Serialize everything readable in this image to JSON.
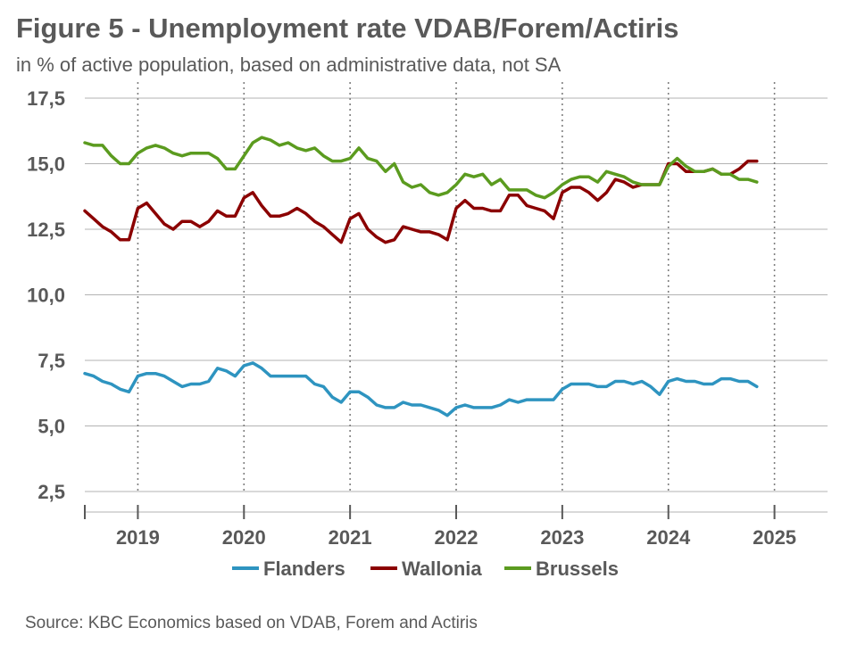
{
  "title": "Figure 5 - Unemployment rate VDAB/Forem/Actiris",
  "subtitle": "in % of active population, based on administrative data, not SA",
  "source": "Source: KBC Economics based on VDAB, Forem and Actiris",
  "chart_data": {
    "type": "line",
    "title": "Figure 5 - Unemployment rate VDAB/Forem/Actiris",
    "subtitle": "in % of active population, based on administrative data, not SA",
    "ylim": [
      2.5,
      17.5
    ],
    "yticks": [
      2.5,
      5.0,
      7.5,
      10.0,
      12.5,
      15.0,
      17.5
    ],
    "yticklabels": [
      "2,5",
      "5,0",
      "7,5",
      "10,0",
      "12,5",
      "15,0",
      "17,5"
    ],
    "xlim": [
      2018.5,
      2025.5
    ],
    "year_labels": [
      "2019",
      "2020",
      "2021",
      "2022",
      "2023",
      "2024",
      "2025"
    ],
    "grid": "horizontal solid, vertical dotted at year boundaries",
    "legend": "bottom",
    "x_start": 2018.5,
    "x_step_months": 1,
    "series": [
      {
        "name": "Flanders",
        "color": "#2E94C0",
        "values": [
          7.0,
          6.9,
          6.7,
          6.6,
          6.4,
          6.3,
          6.9,
          7.0,
          7.0,
          6.9,
          6.7,
          6.5,
          6.6,
          6.6,
          6.7,
          7.2,
          7.1,
          6.9,
          7.3,
          7.4,
          7.2,
          6.9,
          6.9,
          6.9,
          6.9,
          6.9,
          6.6,
          6.5,
          6.1,
          5.9,
          6.3,
          6.3,
          6.1,
          5.8,
          5.7,
          5.7,
          5.9,
          5.8,
          5.8,
          5.7,
          5.6,
          5.4,
          5.7,
          5.8,
          5.7,
          5.7,
          5.7,
          5.8,
          6.0,
          5.9,
          6.0,
          6.0,
          6.0,
          6.0,
          6.4,
          6.6,
          6.6,
          6.6,
          6.5,
          6.5,
          6.7,
          6.7,
          6.6,
          6.7,
          6.5,
          6.2,
          6.7,
          6.8,
          6.7,
          6.7,
          6.6,
          6.6,
          6.8,
          6.8,
          6.7,
          6.7,
          6.5
        ]
      },
      {
        "name": "Wallonia",
        "color": "#8B0000",
        "values": [
          13.2,
          12.9,
          12.6,
          12.4,
          12.1,
          12.1,
          13.3,
          13.5,
          13.1,
          12.7,
          12.5,
          12.8,
          12.8,
          12.6,
          12.8,
          13.2,
          13.0,
          13.0,
          13.7,
          13.9,
          13.4,
          13.0,
          13.0,
          13.1,
          13.3,
          13.1,
          12.8,
          12.6,
          12.3,
          12.0,
          12.9,
          13.1,
          12.5,
          12.2,
          12.0,
          12.1,
          12.6,
          12.5,
          12.4,
          12.4,
          12.3,
          12.1,
          13.3,
          13.6,
          13.3,
          13.3,
          13.2,
          13.2,
          13.8,
          13.8,
          13.4,
          13.3,
          13.2,
          12.9,
          13.9,
          14.1,
          14.1,
          13.9,
          13.6,
          13.9,
          14.4,
          14.3,
          14.1,
          14.2,
          14.2,
          14.2,
          15.0,
          15.0,
          14.7,
          14.7,
          14.7,
          14.8,
          14.6,
          14.6,
          14.8,
          15.1,
          15.1
        ]
      },
      {
        "name": "Brussels",
        "color": "#5B9B1F",
        "values": [
          15.8,
          15.7,
          15.7,
          15.3,
          15.0,
          15.0,
          15.4,
          15.6,
          15.7,
          15.6,
          15.4,
          15.3,
          15.4,
          15.4,
          15.4,
          15.2,
          14.8,
          14.8,
          15.3,
          15.8,
          16.0,
          15.9,
          15.7,
          15.8,
          15.6,
          15.5,
          15.6,
          15.3,
          15.1,
          15.1,
          15.2,
          15.6,
          15.2,
          15.1,
          14.7,
          15.0,
          14.3,
          14.1,
          14.2,
          13.9,
          13.8,
          13.9,
          14.2,
          14.6,
          14.5,
          14.6,
          14.2,
          14.4,
          14.0,
          14.0,
          14.0,
          13.8,
          13.7,
          13.9,
          14.2,
          14.4,
          14.5,
          14.5,
          14.3,
          14.7,
          14.6,
          14.5,
          14.3,
          14.2,
          14.2,
          14.2,
          14.9,
          15.2,
          14.9,
          14.7,
          14.7,
          14.8,
          14.6,
          14.6,
          14.4,
          14.4,
          14.3
        ]
      }
    ]
  }
}
